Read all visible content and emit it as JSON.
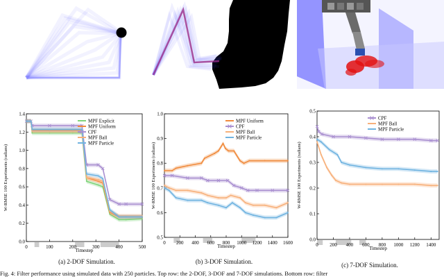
{
  "captions": {
    "a": "(a) 2-DOF Simulation.",
    "b": "(b) 3-DOF Simulation.",
    "c": "(c) 7-DOF Simulation.",
    "figure": "Fig. 4: Filter performance using simulated data with 250 particles. Top row: the 2-DOF, 3-DOF and 7-DOF simulations. Bottom row: filter"
  },
  "colors": {
    "mpf_explicit": "#7fd37a",
    "mpf_uniform": "#f08a3c",
    "cpf": "#a98fd0",
    "mpf_ball": "#f7b07a",
    "mpf_particle": "#6fb3e0",
    "robot_blue": "#4646ff",
    "obstacle": "#000000",
    "gray_band": "#cccccc"
  },
  "chart_data": [
    {
      "type": "line",
      "id": "a",
      "xlabel": "Timestep",
      "ylabel": "W-RMSE 100 Experiments (radians)",
      "xlim": [
        0,
        500
      ],
      "ylim": [
        0.0,
        1.4
      ],
      "xticks": [
        "0",
        "100",
        "200",
        "300",
        "400",
        "500"
      ],
      "yticks": [
        "0.0",
        "0.2",
        "0.4",
        "0.6",
        "0.8",
        "1.0",
        "1.2",
        "1.4"
      ],
      "legend_position": "top-right",
      "gray_bands": [
        [
          35,
          55
        ],
        [
          210,
          250
        ],
        [
          320,
          400
        ]
      ],
      "series": [
        {
          "name": "MPF Explicit",
          "x": [
            0,
            20,
            25,
            100,
            200,
            240,
            260,
            310,
            330,
            360,
            400,
            430,
            500
          ],
          "y": [
            1.32,
            1.32,
            1.19,
            1.19,
            1.19,
            1.19,
            0.66,
            0.62,
            0.6,
            0.3,
            0.24,
            0.24,
            0.25
          ]
        },
        {
          "name": "MPF Uniform",
          "x": [
            0,
            20,
            25,
            100,
            200,
            240,
            260,
            310,
            330,
            360,
            400,
            430,
            500
          ],
          "y": [
            1.32,
            1.32,
            1.22,
            1.22,
            1.22,
            1.22,
            0.7,
            0.66,
            0.64,
            0.32,
            0.27,
            0.27,
            0.27
          ]
        },
        {
          "name": "CPF",
          "x": [
            0,
            20,
            25,
            100,
            200,
            240,
            260,
            310,
            330,
            360,
            400,
            430,
            500
          ],
          "y": [
            1.32,
            1.32,
            1.27,
            1.27,
            1.27,
            1.27,
            0.84,
            0.84,
            0.8,
            0.46,
            0.41,
            0.41,
            0.41
          ]
        },
        {
          "name": "MPF Ball",
          "x": [
            0,
            20,
            25,
            100,
            200,
            240,
            260,
            310,
            330,
            360,
            400,
            430,
            500
          ],
          "y": [
            1.32,
            1.32,
            1.21,
            1.21,
            1.21,
            1.21,
            0.7,
            0.68,
            0.66,
            0.33,
            0.28,
            0.28,
            0.28
          ]
        },
        {
          "name": "MPF Particle",
          "x": [
            0,
            20,
            25,
            100,
            200,
            240,
            260,
            310,
            330,
            360,
            400,
            430,
            500
          ],
          "y": [
            1.32,
            1.32,
            1.23,
            1.23,
            1.23,
            1.23,
            0.74,
            0.72,
            0.69,
            0.35,
            0.27,
            0.27,
            0.27
          ]
        }
      ]
    },
    {
      "type": "line",
      "id": "b",
      "xlabel": "Timestep",
      "ylabel": "W-RMSE 100 Experiments (radians)",
      "xlim": [
        0,
        1600
      ],
      "ylim": [
        0.5,
        1.0
      ],
      "xticks": [
        "0",
        "200",
        "400",
        "600",
        "800",
        "1000",
        "1200",
        "1400",
        "1600"
      ],
      "yticks": [
        "0.5",
        "0.6",
        "0.7",
        "0.8",
        "0.9",
        "1.0"
      ],
      "legend_position": "top-right",
      "gray_bands": [
        [
          120,
          200
        ],
        [
          500,
          620
        ],
        [
          1000,
          1180
        ]
      ],
      "series": [
        {
          "name": "MPF Uniform",
          "x": [
            0,
            100,
            150,
            300,
            480,
            520,
            650,
            700,
            760,
            790,
            830,
            900,
            980,
            1030,
            1100,
            1300,
            1600
          ],
          "y": [
            0.77,
            0.77,
            0.78,
            0.79,
            0.8,
            0.82,
            0.84,
            0.85,
            0.88,
            0.86,
            0.85,
            0.85,
            0.81,
            0.8,
            0.81,
            0.81,
            0.81
          ]
        },
        {
          "name": "CPF",
          "x": [
            0,
            100,
            300,
            480,
            560,
            700,
            820,
            900,
            1000,
            1080,
            1200,
            1400,
            1600
          ],
          "y": [
            0.75,
            0.75,
            0.74,
            0.74,
            0.73,
            0.73,
            0.73,
            0.71,
            0.7,
            0.69,
            0.69,
            0.69,
            0.69
          ]
        },
        {
          "name": "MPF Ball",
          "x": [
            0,
            60,
            150,
            300,
            480,
            560,
            700,
            800,
            860,
            980,
            1050,
            1150,
            1300,
            1450,
            1600
          ],
          "y": [
            0.71,
            0.7,
            0.69,
            0.69,
            0.68,
            0.67,
            0.66,
            0.66,
            0.67,
            0.66,
            0.64,
            0.63,
            0.63,
            0.62,
            0.64
          ]
        },
        {
          "name": "MPF Particle",
          "x": [
            0,
            60,
            150,
            300,
            480,
            560,
            700,
            800,
            880,
            980,
            1050,
            1150,
            1300,
            1450,
            1600
          ],
          "y": [
            0.7,
            0.69,
            0.66,
            0.65,
            0.65,
            0.64,
            0.63,
            0.62,
            0.64,
            0.62,
            0.6,
            0.59,
            0.58,
            0.58,
            0.6
          ]
        }
      ]
    },
    {
      "type": "line",
      "id": "c",
      "xlabel": "Timestep",
      "ylabel": "W-RMSE 100 Experiments (radians)",
      "xlim": [
        0,
        1500
      ],
      "ylim": [
        0.0,
        0.5
      ],
      "xticks": [
        "0",
        "200",
        "400",
        "600",
        "800",
        "1000",
        "1200",
        "1400"
      ],
      "yticks": [
        "0.0",
        "0.1",
        "0.2",
        "0.3",
        "0.4",
        "0.5"
      ],
      "legend_position": "top-right",
      "gray_bands": [
        [
          0,
          70
        ],
        [
          230,
          420
        ],
        [
          520,
          600
        ]
      ],
      "series": [
        {
          "name": "CPF",
          "x": [
            0,
            20,
            60,
            200,
            400,
            600,
            800,
            1000,
            1200,
            1400,
            1480
          ],
          "y": [
            0.44,
            0.42,
            0.41,
            0.4,
            0.4,
            0.395,
            0.39,
            0.39,
            0.39,
            0.385,
            0.385
          ]
        },
        {
          "name": "MPF Ball",
          "x": [
            0,
            50,
            120,
            180,
            230,
            300,
            400,
            600,
            800,
            1000,
            1200,
            1400,
            1480
          ],
          "y": [
            0.38,
            0.33,
            0.28,
            0.25,
            0.23,
            0.22,
            0.215,
            0.215,
            0.215,
            0.215,
            0.215,
            0.21,
            0.21
          ]
        },
        {
          "name": "MPF Particle",
          "x": [
            0,
            50,
            150,
            250,
            300,
            400,
            600,
            800,
            1000,
            1200,
            1400,
            1480
          ],
          "y": [
            0.39,
            0.38,
            0.35,
            0.33,
            0.3,
            0.29,
            0.28,
            0.275,
            0.275,
            0.27,
            0.265,
            0.265
          ]
        }
      ]
    }
  ]
}
